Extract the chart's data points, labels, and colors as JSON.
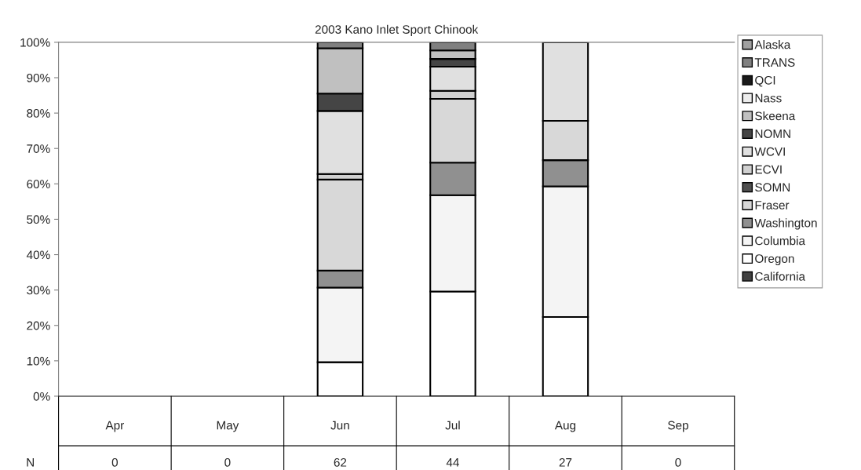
{
  "chart_data": {
    "type": "bar",
    "stacked": true,
    "title": "2003 Kano Inlet Sport Chinook",
    "categories": [
      "Apr",
      "May",
      "Jun",
      "Jul",
      "Aug",
      "Sep"
    ],
    "ylim": [
      0,
      100
    ],
    "yticks": [
      {
        "value": 0,
        "label": "0%"
      },
      {
        "value": 10,
        "label": "10%"
      },
      {
        "value": 20,
        "label": "20%"
      },
      {
        "value": 30,
        "label": "30%"
      },
      {
        "value": 40,
        "label": "40%"
      },
      {
        "value": 50,
        "label": "50%"
      },
      {
        "value": 60,
        "label": "60%"
      },
      {
        "value": 70,
        "label": "70%"
      },
      {
        "value": 80,
        "label": "80%"
      },
      {
        "value": 90,
        "label": "90%"
      },
      {
        "value": 100,
        "label": "100%"
      }
    ],
    "grid": false,
    "legend": "right",
    "series": [
      {
        "name": "California",
        "color": "#404040",
        "values": [
          null,
          null,
          null,
          null,
          null,
          null
        ]
      },
      {
        "name": "Oregon",
        "color": "#ffffff",
        "values": [
          null,
          null,
          9.6,
          29.6,
          22.4,
          null
        ]
      },
      {
        "name": "Columbia",
        "color": "#f4f4f4",
        "values": [
          null,
          null,
          21.1,
          27.2,
          36.9,
          null
        ]
      },
      {
        "name": "Washington",
        "color": "#909090",
        "values": [
          null,
          null,
          4.8,
          9.2,
          7.4,
          null
        ]
      },
      {
        "name": "Fraser",
        "color": "#d8d8d8",
        "values": [
          null,
          null,
          25.7,
          18.0,
          11.1,
          null
        ]
      },
      {
        "name": "SOMN",
        "color": "#505050",
        "values": [
          null,
          null,
          null,
          null,
          null,
          null
        ]
      },
      {
        "name": "ECVI",
        "color": "#d0d0d0",
        "values": [
          null,
          null,
          1.6,
          2.3,
          null,
          null
        ]
      },
      {
        "name": "WCVI",
        "color": "#e0e0e0",
        "values": [
          null,
          null,
          17.8,
          6.8,
          22.2,
          null
        ]
      },
      {
        "name": "NOMN",
        "color": "#454545",
        "values": [
          null,
          null,
          4.9,
          2.2,
          null,
          null
        ]
      },
      {
        "name": "Skeena",
        "color": "#c0c0c0",
        "values": [
          null,
          null,
          12.8,
          2.4,
          null,
          null
        ]
      },
      {
        "name": "Nass",
        "color": "#ececec",
        "values": [
          null,
          null,
          null,
          null,
          null,
          null
        ]
      },
      {
        "name": "QCI",
        "color": "#1a1a1a",
        "values": [
          null,
          null,
          null,
          null,
          null,
          null
        ]
      },
      {
        "name": "TRANS",
        "color": "#808080",
        "values": [
          null,
          null,
          1.7,
          2.3,
          null,
          null
        ]
      },
      {
        "name": "Alaska",
        "color": "#a0a0a0",
        "values": [
          null,
          null,
          null,
          null,
          null,
          null
        ]
      }
    ],
    "annotations": [
      "N",
      "0",
      "0",
      "62",
      "44",
      "27",
      "0"
    ]
  }
}
